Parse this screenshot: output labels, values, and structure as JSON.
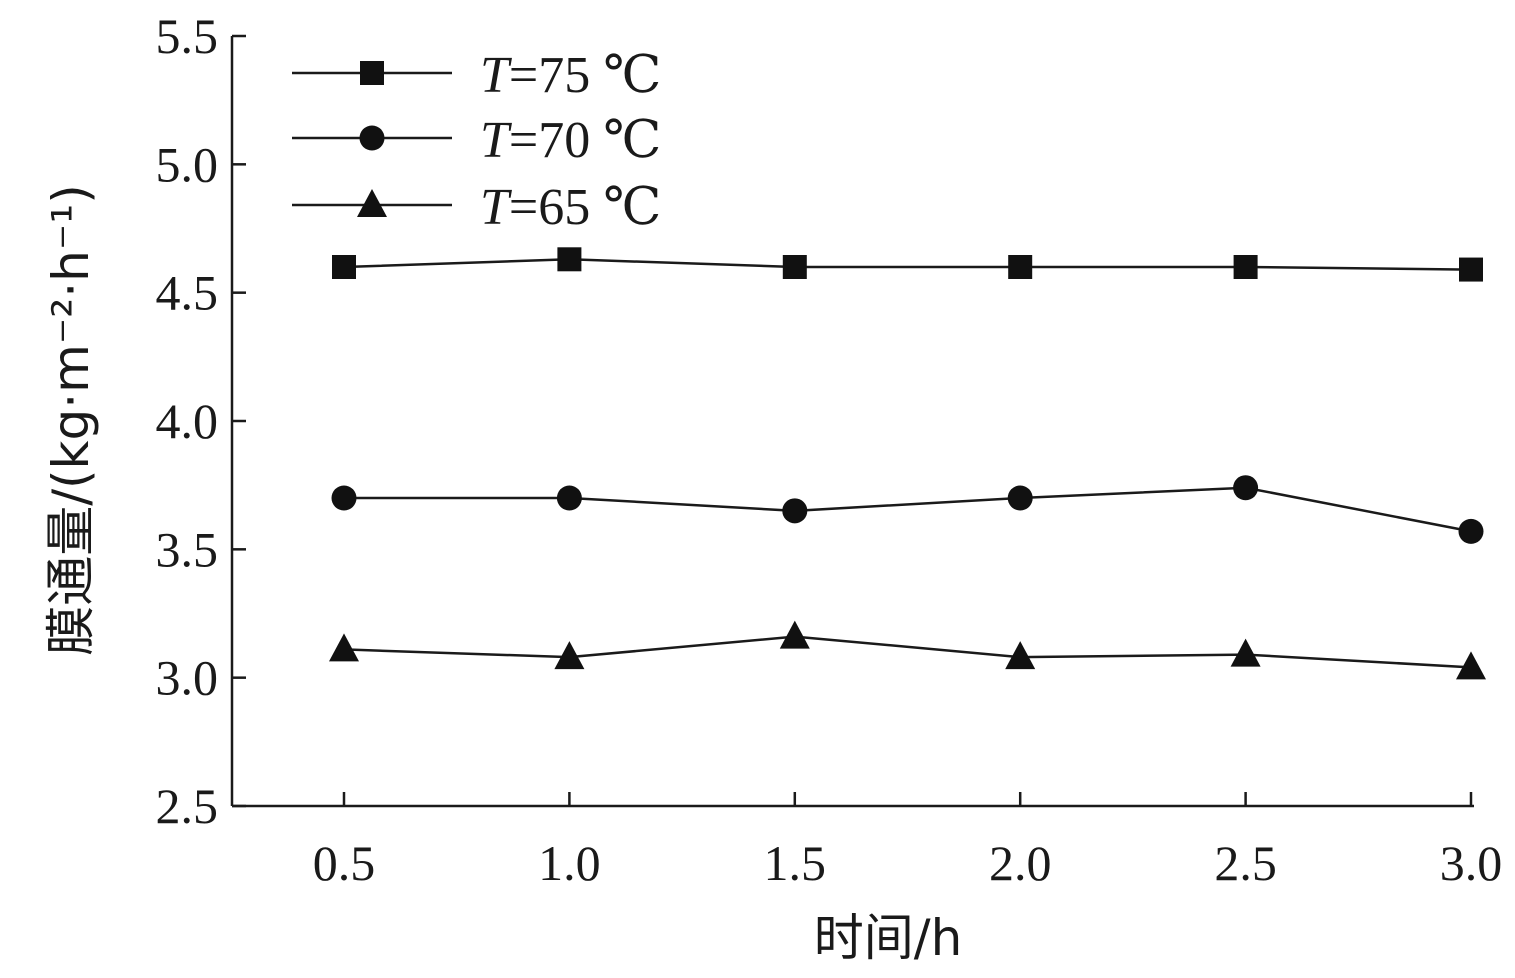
{
  "chart_data": {
    "type": "line",
    "title": "",
    "xlabel": "时间/h",
    "ylabel": "膜通量/(kg·m⁻²·h⁻¹)",
    "x": [
      0.5,
      1.0,
      1.5,
      2.0,
      2.5,
      3.0
    ],
    "x_tick_labels": [
      "0.5",
      "1.0",
      "1.5",
      "2.0",
      "2.5",
      "3.0"
    ],
    "ylim": [
      2.5,
      5.5
    ],
    "y_ticks": [
      2.5,
      3.0,
      3.5,
      4.0,
      4.5,
      5.0,
      5.5
    ],
    "y_tick_labels": [
      "2.5",
      "3.0",
      "3.5",
      "4.0",
      "4.5",
      "5.0",
      "5.5"
    ],
    "grid": false,
    "legend_position": "top-left",
    "series": [
      {
        "name": "T=75 ℃",
        "legend_prefix": "T",
        "legend_suffix": "=75 ℃",
        "marker": "square",
        "values": [
          4.6,
          4.63,
          4.6,
          4.6,
          4.6,
          4.59
        ]
      },
      {
        "name": "T=70 ℃",
        "legend_prefix": "T",
        "legend_suffix": "=70 ℃",
        "marker": "circle",
        "values": [
          3.7,
          3.7,
          3.65,
          3.7,
          3.74,
          3.57
        ]
      },
      {
        "name": "T=65 ℃",
        "legend_prefix": "T",
        "legend_suffix": "=65 ℃",
        "marker": "triangle",
        "values": [
          3.11,
          3.08,
          3.16,
          3.08,
          3.09,
          3.04
        ]
      }
    ],
    "line_color": "#1a1a1a",
    "marker_color": "#111111"
  }
}
